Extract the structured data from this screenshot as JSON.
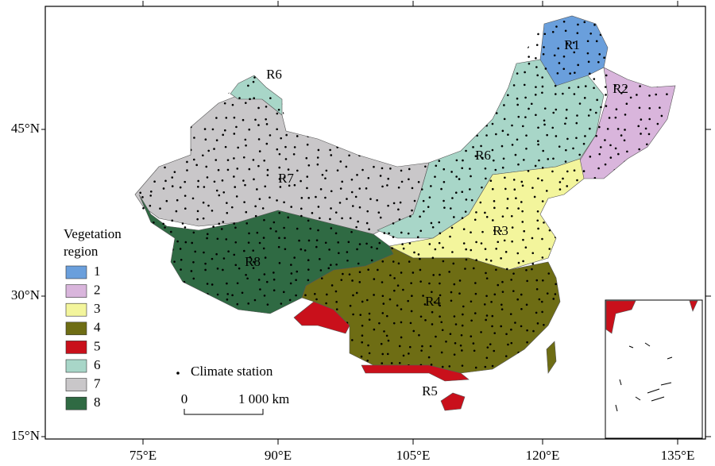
{
  "map": {
    "x_ticks": [
      "75°E",
      "90°E",
      "105°E",
      "120°E",
      "135°E"
    ],
    "y_ticks": [
      "45°N",
      "30°N",
      "15°N"
    ],
    "region_labels": [
      "R1",
      "R2",
      "R3",
      "R4",
      "R5",
      "R6",
      "R6",
      "R7",
      "R8"
    ],
    "legend": {
      "title_lines": [
        "Vegetation",
        "region"
      ],
      "items": [
        {
          "label": "1",
          "color": "#6a9fdc"
        },
        {
          "label": "2",
          "color": "#d9b5dc"
        },
        {
          "label": "3",
          "color": "#f3f59c"
        },
        {
          "label": "4",
          "color": "#6e6d14"
        },
        {
          "label": "5",
          "color": "#c9101b"
        },
        {
          "label": "6",
          "color": "#a8d6c8"
        },
        {
          "label": "7",
          "color": "#c9c7c9"
        },
        {
          "label": "8",
          "color": "#2f6a43"
        }
      ]
    },
    "station_label": "Climate station",
    "scale": {
      "start": "0",
      "end": "1 000 km"
    }
  }
}
